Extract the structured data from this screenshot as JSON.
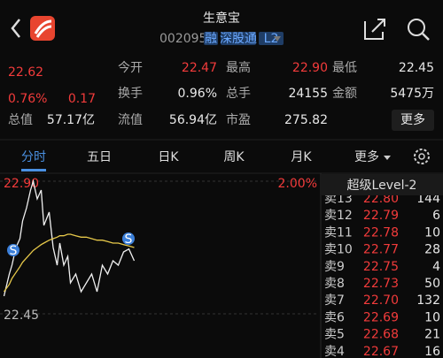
{
  "header": {
    "title": "生意宝",
    "code": "002095",
    "badges": [
      "融",
      "深股通",
      "L2"
    ]
  },
  "quote": {
    "price": "22.62",
    "change_pct": "0.76%",
    "change": "0.17",
    "stats": [
      {
        "label": "今开",
        "value": "22.47",
        "color": "#f23b3b"
      },
      {
        "label": "最高",
        "value": "22.90",
        "color": "#f23b3b"
      },
      {
        "label": "最低",
        "value": "22.45",
        "color": "#e8e8e8"
      },
      {
        "label": "换手",
        "value": "0.96%",
        "color": "#e8e8e8"
      },
      {
        "label": "总手",
        "value": "24155",
        "color": "#e8e8e8"
      },
      {
        "label": "金额",
        "value": "5475万",
        "color": "#e8e8e8"
      },
      {
        "label": "总值",
        "value": "57.17亿",
        "color": "#e8e8e8"
      },
      {
        "label": "流值",
        "value": "56.94亿",
        "color": "#e8e8e8"
      },
      {
        "label": "市盈",
        "value": "275.82",
        "color": "#e8e8e8"
      }
    ],
    "more": "更多"
  },
  "tabs": [
    "分时",
    "五日",
    "日K",
    "周K",
    "月K",
    "更多"
  ],
  "chart_data": {
    "type": "line",
    "x": [
      3,
      7,
      9,
      12,
      15,
      17,
      20,
      23,
      25,
      28,
      31,
      33,
      37,
      40,
      43,
      45,
      48,
      51,
      53,
      57,
      61,
      65,
      69,
      73,
      77,
      81,
      85,
      89,
      93,
      97,
      101
    ],
    "xlim": [
      0,
      240
    ],
    "ylim": [
      22.45,
      22.9
    ],
    "yticks": [
      22.45,
      {
        "value": 22.9,
        "label": "22.90"
      }
    ],
    "y2lim": [
      0,
      2
    ],
    "y2ticks": [
      {
        "value": 2,
        "label": "2.00%"
      }
    ],
    "series": [
      {
        "color": "#f0f0f0",
        "values": [
          22.51,
          22.585,
          22.615,
          22.675,
          22.705,
          22.765,
          22.81,
          22.87,
          22.9,
          22.84,
          22.87,
          22.75,
          22.795,
          22.675,
          22.615,
          22.69,
          22.615,
          22.645,
          22.555,
          22.585,
          22.525,
          22.555,
          22.585,
          22.525,
          22.615,
          22.585,
          22.63,
          22.615,
          22.66,
          22.67,
          22.63
        ]
      },
      {
        "color": "#e6c84a",
        "values": [
          22.525,
          22.55,
          22.57,
          22.59,
          22.61,
          22.625,
          22.64,
          22.655,
          22.665,
          22.675,
          22.685,
          22.69,
          22.7,
          22.705,
          22.71,
          22.715,
          22.715,
          22.72,
          22.72,
          22.715,
          22.71,
          22.71,
          22.705,
          22.7,
          22.7,
          22.695,
          22.69,
          22.69,
          22.685,
          22.68,
          22.675
        ]
      }
    ],
    "signals": [
      "S",
      "S"
    ]
  },
  "level2": {
    "title": "超级Level-2",
    "rows": [
      [
        "卖13",
        "22.80",
        "144"
      ],
      [
        "卖12",
        "22.79",
        "6"
      ],
      [
        "卖11",
        "22.78",
        "10"
      ],
      [
        "卖10",
        "22.77",
        "28"
      ],
      [
        "卖9",
        "22.75",
        "4"
      ],
      [
        "卖8",
        "22.73",
        "50"
      ],
      [
        "卖7",
        "22.70",
        "132"
      ],
      [
        "卖6",
        "22.69",
        "10"
      ],
      [
        "卖5",
        "22.68",
        "21"
      ],
      [
        "卖4",
        "22.67",
        "16"
      ]
    ]
  }
}
